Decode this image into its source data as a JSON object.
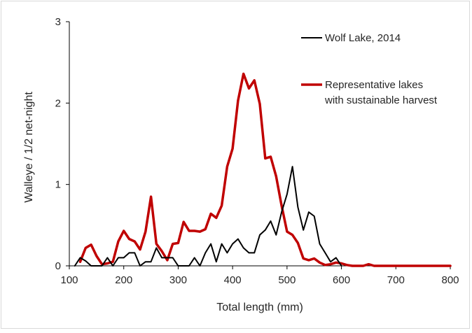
{
  "chart_data": {
    "type": "line",
    "title": "",
    "xlabel": "Total length (mm)",
    "ylabel": "Walleye / 1/2 net-night",
    "xlim": [
      100,
      800
    ],
    "ylim": [
      0,
      3
    ],
    "xticks": [
      100,
      200,
      300,
      400,
      500,
      600,
      700,
      800
    ],
    "yticks": [
      0,
      1,
      2,
      3
    ],
    "grid": false,
    "legend_position": "top-right",
    "series": [
      {
        "name": "Wolf Lake, 2014",
        "color": "#000000",
        "x": [
          110,
          120,
          130,
          140,
          150,
          160,
          170,
          180,
          190,
          200,
          210,
          220,
          230,
          240,
          250,
          260,
          270,
          280,
          290,
          300,
          310,
          320,
          330,
          340,
          350,
          360,
          370,
          380,
          390,
          400,
          410,
          420,
          430,
          440,
          450,
          460,
          470,
          480,
          490,
          500,
          510,
          520,
          530,
          540,
          550,
          560,
          570,
          580,
          590,
          600
        ],
        "y": [
          0,
          0.1,
          0.06,
          0,
          0,
          0,
          0.1,
          0,
          0.1,
          0.1,
          0.16,
          0.16,
          0,
          0.05,
          0.05,
          0.22,
          0.1,
          0.1,
          0.1,
          0,
          0,
          0,
          0.1,
          0,
          0.16,
          0.27,
          0.05,
          0.27,
          0.16,
          0.27,
          0.33,
          0.22,
          0.16,
          0.16,
          0.38,
          0.44,
          0.55,
          0.38,
          0.66,
          0.88,
          1.22,
          0.72,
          0.44,
          0.66,
          0.61,
          0.27,
          0.16,
          0.05,
          0.1,
          0
        ]
      },
      {
        "name": "Representative lakes\nwith sustainable harvest",
        "name_lines": [
          "Representative lakes",
          "with sustainable harvest"
        ],
        "color": "#c00000",
        "x": [
          120,
          130,
          140,
          150,
          160,
          170,
          180,
          190,
          200,
          210,
          220,
          230,
          240,
          250,
          260,
          270,
          280,
          290,
          300,
          310,
          320,
          330,
          340,
          350,
          360,
          370,
          380,
          390,
          400,
          410,
          420,
          430,
          440,
          450,
          460,
          470,
          480,
          490,
          500,
          510,
          520,
          530,
          540,
          550,
          560,
          570,
          580,
          590,
          600,
          610,
          620,
          630,
          640,
          650,
          660,
          670,
          680,
          690,
          700,
          710,
          720,
          730,
          740,
          750,
          760,
          770,
          780,
          790,
          800
        ],
        "y": [
          0.05,
          0.22,
          0.26,
          0.12,
          0.02,
          0.03,
          0.05,
          0.3,
          0.43,
          0.33,
          0.3,
          0.2,
          0.42,
          0.85,
          0.27,
          0.18,
          0.07,
          0.27,
          0.28,
          0.54,
          0.43,
          0.43,
          0.42,
          0.45,
          0.64,
          0.59,
          0.74,
          1.22,
          1.44,
          2.03,
          2.36,
          2.18,
          2.28,
          1.99,
          1.32,
          1.34,
          1.1,
          0.74,
          0.42,
          0.38,
          0.28,
          0.09,
          0.07,
          0.09,
          0.04,
          0.01,
          0.02,
          0.04,
          0.03,
          0.01,
          0,
          0,
          0,
          0.02,
          0,
          0,
          0,
          0,
          0,
          0,
          0,
          0,
          0,
          0,
          0,
          0,
          0,
          0,
          0
        ]
      }
    ]
  }
}
